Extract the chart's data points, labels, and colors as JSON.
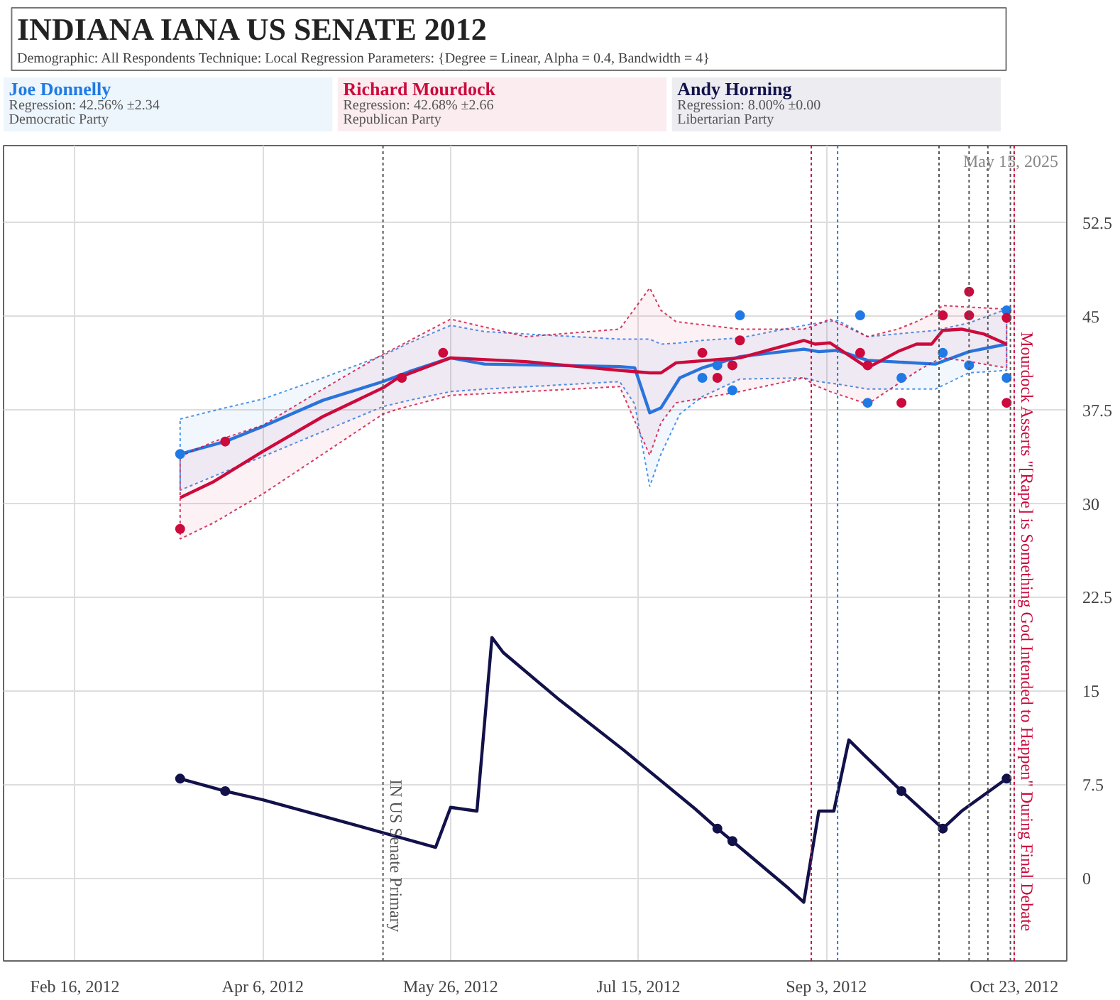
{
  "chart_data": {
    "type": "line",
    "title": "INDIANA IANA US SENATE 2012",
    "subtitle": "Demographic: All Respondents   Technique: Local Regression   Parameters: {Degree = Linear, Alpha = 0.4, Bandwidth = 4}",
    "annotations": [
      "May 15, 2025",
      "Regression: 42.56% ±2.34",
      "Democratic Party",
      "Regression: 42.68% ±2.66",
      "Republican Party",
      "Regression: 8.00% ±0.00",
      "Libertarian Party"
    ],
    "xlim": [
      "2012-01-28",
      "2012-11-06"
    ],
    "xticks": [
      {
        "value": "2012-02-16",
        "label": "Feb 16, 2012"
      },
      {
        "value": "2012-04-06",
        "label": "Apr 6, 2012"
      },
      {
        "value": "2012-05-26",
        "label": "May 26, 2012"
      },
      {
        "value": "2012-07-15",
        "label": "Jul 15, 2012"
      },
      {
        "value": "2012-09-03",
        "label": "Sep 3, 2012"
      },
      {
        "value": "2012-10-23",
        "label": "Oct 23, 2012"
      }
    ],
    "ylim": [
      -6.6,
      58.7
    ],
    "yticks": [
      0,
      7.5,
      15,
      22.5,
      30,
      37.5,
      45,
      52.5
    ],
    "grid": true,
    "legend": "top",
    "series": [
      {
        "name": "Joe Donnelly",
        "color": "#1f7ae6",
        "x": [
          "2012-03-15",
          "2012-03-27",
          "2012-04-06",
          "2012-04-22",
          "2012-05-08",
          "2012-05-15",
          "2012-05-26",
          "2012-06-04",
          "2012-07-10",
          "2012-07-14",
          "2012-07-18",
          "2012-07-21",
          "2012-07-26",
          "2012-08-01",
          "2012-08-11",
          "2012-08-28",
          "2012-09-01",
          "2012-09-06",
          "2012-09-14",
          "2012-10-02",
          "2012-10-11",
          "2012-10-21"
        ],
        "values": [
          34.0,
          35.0,
          36.2,
          38.3,
          39.8,
          40.6,
          41.7,
          41.2,
          41.0,
          40.9,
          37.3,
          37.7,
          40.1,
          40.9,
          41.8,
          42.4,
          42.2,
          42.3,
          41.5,
          41.2,
          42.2,
          42.8
        ],
        "upper": [
          36.8,
          37.7,
          38.4,
          40.1,
          41.9,
          42.9,
          44.3,
          43.8,
          43.2,
          43.2,
          43.2,
          42.8,
          42.9,
          43.1,
          43.3,
          44.3,
          44.5,
          44.7,
          43.4,
          43.9,
          44.5,
          45.6
        ],
        "lower": [
          31.1,
          32.6,
          33.8,
          35.8,
          37.8,
          38.3,
          39.0,
          39.2,
          39.8,
          38.0,
          31.4,
          34.0,
          37.2,
          38.6,
          40.0,
          40.1,
          39.8,
          39.6,
          39.2,
          39.2,
          40.5,
          40.7
        ]
      },
      {
        "name": "Richard Mourdock",
        "color": "#cc0a3c",
        "x": [
          "2012-03-15",
          "2012-03-24",
          "2012-04-06",
          "2012-04-22",
          "2012-05-08",
          "2012-05-12",
          "2012-05-26",
          "2012-06-15",
          "2012-07-10",
          "2012-07-18",
          "2012-07-21",
          "2012-07-25",
          "2012-08-11",
          "2012-08-28",
          "2012-08-31",
          "2012-09-04",
          "2012-09-14",
          "2012-09-22",
          "2012-09-27",
          "2012-10-01",
          "2012-10-04",
          "2012-10-09",
          "2012-10-15",
          "2012-10-21"
        ],
        "values": [
          30.5,
          31.8,
          34.2,
          37.0,
          39.3,
          40.1,
          41.7,
          41.4,
          40.7,
          40.5,
          40.5,
          41.3,
          41.7,
          43.1,
          42.8,
          42.9,
          40.9,
          42.2,
          42.8,
          42.8,
          43.9,
          44.0,
          43.6,
          42.8
        ],
        "upper": [
          33.8,
          35.0,
          36.3,
          39.2,
          42.0,
          42.6,
          44.8,
          43.4,
          44.0,
          47.3,
          45.5,
          44.6,
          44.0,
          44.0,
          44.3,
          44.8,
          43.4,
          44.0,
          44.6,
          45.2,
          45.9,
          45.8,
          45.7,
          45.6
        ],
        "lower": [
          27.2,
          28.5,
          30.8,
          34.0,
          37.2,
          37.6,
          38.7,
          39.0,
          39.4,
          33.9,
          36.5,
          38.1,
          39.0,
          40.1,
          39.5,
          39.0,
          38.0,
          39.6,
          40.6,
          41.3,
          41.7,
          41.5,
          41.2,
          40.9
        ]
      },
      {
        "name": "Andy Horning",
        "color": "#12114a",
        "x": [
          "2012-03-15",
          "2012-03-27",
          "2012-04-06",
          "2012-04-28",
          "2012-05-22",
          "2012-05-26",
          "2012-06-02",
          "2012-06-06",
          "2012-06-09",
          "2012-06-24",
          "2012-07-11",
          "2012-07-30",
          "2012-08-05",
          "2012-08-09",
          "2012-08-24",
          "2012-08-28",
          "2012-09-01",
          "2012-09-05",
          "2012-09-09",
          "2012-09-13",
          "2012-09-23",
          "2012-10-04",
          "2012-10-09",
          "2012-10-21"
        ],
        "values": [
          8.0,
          7.0,
          6.3,
          4.5,
          2.5,
          5.7,
          5.4,
          19.3,
          18.1,
          14.3,
          10.3,
          5.6,
          4.0,
          3.0,
          -0.8,
          -1.9,
          5.4,
          5.4,
          11.1,
          9.9,
          7.0,
          4.0,
          5.4,
          8.0
        ]
      },
      {
        "type": "scatter",
        "color": "#1f7ae6",
        "x": [
          "2012-03-15",
          "2012-08-01",
          "2012-08-05",
          "2012-08-09",
          "2012-08-11",
          "2012-09-12",
          "2012-09-14",
          "2012-09-23",
          "2012-10-04",
          "2012-10-11",
          "2012-10-21",
          "2012-10-21"
        ],
        "values": [
          34.0,
          40.1,
          41.1,
          39.1,
          45.1,
          45.1,
          38.1,
          40.1,
          42.1,
          41.1,
          45.5,
          40.1
        ]
      },
      {
        "type": "scatter",
        "color": "#cc0a3c",
        "x": [
          "2012-03-15",
          "2012-03-27",
          "2012-05-13",
          "2012-05-24",
          "2012-08-01",
          "2012-08-05",
          "2012-08-09",
          "2012-08-11",
          "2012-09-12",
          "2012-09-14",
          "2012-09-23",
          "2012-10-04",
          "2012-10-11",
          "2012-10-11",
          "2012-10-21",
          "2012-10-21"
        ],
        "values": [
          28.0,
          35.0,
          40.1,
          42.1,
          42.1,
          40.1,
          41.1,
          43.1,
          42.1,
          41.1,
          38.1,
          45.1,
          47.0,
          45.1,
          44.9,
          38.1
        ]
      },
      {
        "type": "scatter",
        "color": "#12114a",
        "x": [
          "2012-03-15",
          "2012-03-27",
          "2012-08-05",
          "2012-08-09",
          "2012-09-23",
          "2012-10-04",
          "2012-10-21"
        ],
        "values": [
          8.0,
          7.0,
          4.0,
          3.0,
          7.0,
          4.0,
          8.0
        ]
      }
    ],
    "ref_lines": [
      {
        "axis": "x",
        "value": "2012-05-08",
        "label": "IN US Senate Primary",
        "color": "#555555",
        "line_style": "dotted"
      },
      {
        "axis": "x",
        "value": "2012-08-30",
        "color": "#cc0a3c",
        "line_style": "dotted"
      },
      {
        "axis": "x",
        "value": "2012-09-06",
        "color": "#1f7ae6",
        "line_style": "dotted"
      },
      {
        "axis": "x",
        "value": "2012-10-03",
        "color": "#555555",
        "line_style": "dotted"
      },
      {
        "axis": "x",
        "value": "2012-10-11",
        "color": "#555555",
        "line_style": "dotted"
      },
      {
        "axis": "x",
        "value": "2012-10-16",
        "color": "#555555",
        "line_style": "dotted"
      },
      {
        "axis": "x",
        "value": "2012-10-22",
        "color": "#555555",
        "line_style": "dotted"
      },
      {
        "axis": "x",
        "value": "2012-10-23",
        "label": "Mourdock Asserts \"[Rape] is Something God Intended to Happen\" During Final Debate",
        "color": "#cc0a3c",
        "line_style": "dotted"
      }
    ]
  }
}
